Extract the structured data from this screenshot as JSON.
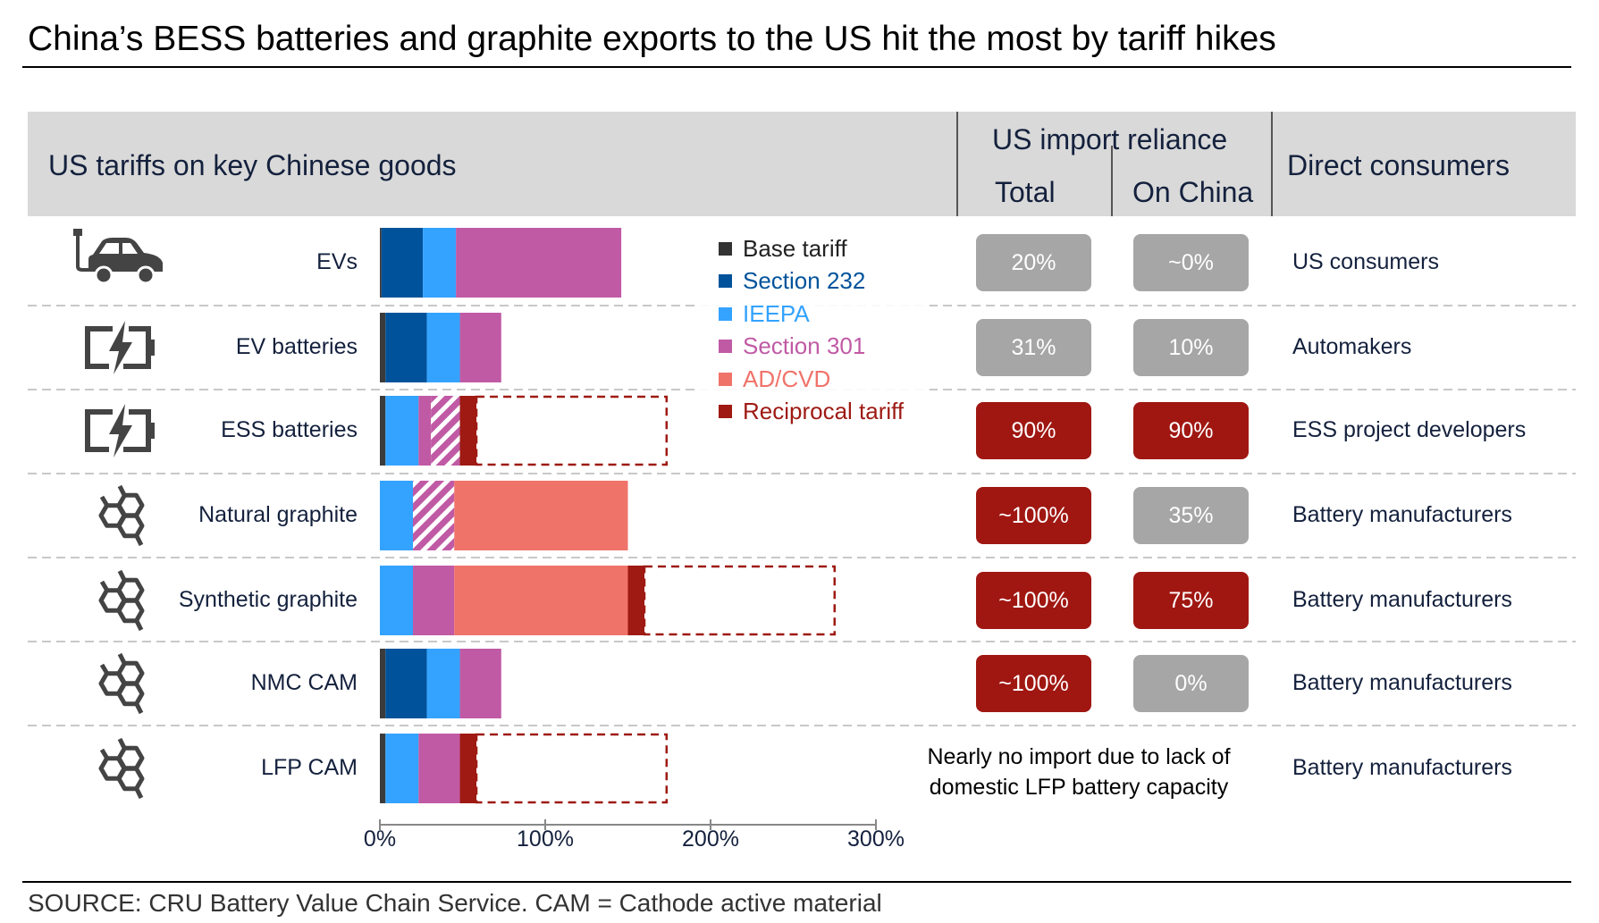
{
  "title": "China’s BESS batteries and graphite exports to the US hit the most by tariff hikes",
  "header": {
    "tariffs": "US tariffs on key Chinese goods",
    "import_reliance": "US import reliance",
    "total": "Total",
    "on_china": "On China",
    "direct_consumers": "Direct consumers"
  },
  "colors": {
    "base": "#3b3b3b",
    "s232": "#00539b",
    "ieepa": "#33a3ff",
    "s301": "#c05aa5",
    "adcvd": "#f0736a",
    "reciprocal": "#9e1a13",
    "badge_grey": "#a6a6a6",
    "badge_red": "#a01712"
  },
  "legend": [
    {
      "key": "base",
      "label": "Base tariff",
      "color": "#333333"
    },
    {
      "key": "s232",
      "label": "Section 232",
      "color": "#00539b"
    },
    {
      "key": "ieepa",
      "label": "IEEPA",
      "color": "#33a3ff"
    },
    {
      "key": "s301",
      "label": "Section 301",
      "color": "#c05aa5"
    },
    {
      "key": "adcvd",
      "label": "AD/CVD",
      "color": "#f0736a"
    },
    {
      "key": "reciprocal",
      "label": "Reciprocal tariff",
      "color": "#9e1a13"
    }
  ],
  "chart_data": {
    "type": "bar",
    "orientation": "horizontal",
    "stacked": true,
    "xlim": [
      0,
      300
    ],
    "x_ticks": [
      "0%",
      "100%",
      "200%",
      "300%"
    ],
    "categories": [
      "EVs",
      "EV batteries",
      "ESS batteries",
      "Natural graphite",
      "Synthetic graphite",
      "NMC CAM",
      "LFP CAM"
    ],
    "rows": [
      {
        "label": "EVs",
        "icon": "electric-car-icon",
        "segments": [
          {
            "type": "base",
            "value": 1
          },
          {
            "type": "s232",
            "value": 25
          },
          {
            "type": "ieepa",
            "value": 20
          },
          {
            "type": "s301",
            "value": 100
          }
        ],
        "dashed_reciprocal_extension": 0
      },
      {
        "label": "EV batteries",
        "icon": "battery-charging-icon",
        "segments": [
          {
            "type": "base",
            "value": 3.4
          },
          {
            "type": "s232",
            "value": 25
          },
          {
            "type": "ieepa",
            "value": 20
          },
          {
            "type": "s301",
            "value": 25
          }
        ],
        "dashed_reciprocal_extension": 0
      },
      {
        "label": "ESS batteries",
        "icon": "battery-charging-icon",
        "segments": [
          {
            "type": "base",
            "value": 3.4
          },
          {
            "type": "ieepa",
            "value": 20
          },
          {
            "type": "s301",
            "value": 7.5
          },
          {
            "type": "s301",
            "value": 17.5,
            "hatched": true
          },
          {
            "type": "reciprocal",
            "value": 10
          }
        ],
        "dashed_reciprocal_extension": 115
      },
      {
        "label": "Natural graphite",
        "icon": "graphite-molecule-icon",
        "segments": [
          {
            "type": "ieepa",
            "value": 20
          },
          {
            "type": "s301",
            "value": 25,
            "hatched": true
          },
          {
            "type": "adcvd",
            "value": 105
          }
        ],
        "dashed_reciprocal_extension": 0
      },
      {
        "label": "Synthetic graphite",
        "icon": "graphite-molecule-icon",
        "segments": [
          {
            "type": "ieepa",
            "value": 20
          },
          {
            "type": "s301",
            "value": 25
          },
          {
            "type": "adcvd",
            "value": 105
          },
          {
            "type": "reciprocal",
            "value": 10
          }
        ],
        "dashed_reciprocal_extension": 115
      },
      {
        "label": "NMC CAM",
        "icon": "graphite-molecule-icon",
        "segments": [
          {
            "type": "base",
            "value": 3.4
          },
          {
            "type": "s232",
            "value": 25
          },
          {
            "type": "ieepa",
            "value": 20
          },
          {
            "type": "s301",
            "value": 25
          }
        ],
        "dashed_reciprocal_extension": 0
      },
      {
        "label": "LFP CAM",
        "icon": "graphite-molecule-icon",
        "segments": [
          {
            "type": "base",
            "value": 3.4
          },
          {
            "type": "ieepa",
            "value": 20
          },
          {
            "type": "s301",
            "value": 25
          },
          {
            "type": "reciprocal",
            "value": 10
          }
        ],
        "dashed_reciprocal_extension": 115
      }
    ]
  },
  "reliance": [
    {
      "total": "20%",
      "total_level": "grey",
      "china": "~0%",
      "china_level": "grey",
      "consumer": "US consumers"
    },
    {
      "total": "31%",
      "total_level": "grey",
      "china": "10%",
      "china_level": "grey",
      "consumer": "Automakers"
    },
    {
      "total": "90%",
      "total_level": "red",
      "china": "90%",
      "china_level": "red",
      "consumer": "ESS project developers"
    },
    {
      "total": "~100%",
      "total_level": "red",
      "china": "35%",
      "china_level": "grey",
      "consumer": "Battery manufacturers"
    },
    {
      "total": "~100%",
      "total_level": "red",
      "china": "75%",
      "china_level": "red",
      "consumer": "Battery manufacturers"
    },
    {
      "total": "~100%",
      "total_level": "red",
      "china": "0%",
      "china_level": "grey",
      "consumer": "Battery manufacturers"
    },
    {
      "consumer": "Battery manufacturers"
    }
  ],
  "lfp_note": {
    "line1": "Nearly no import due to lack of",
    "line2": "domestic LFP battery capacity"
  },
  "source": "SOURCE: CRU Battery Value Chain Service. CAM = Cathode active material"
}
